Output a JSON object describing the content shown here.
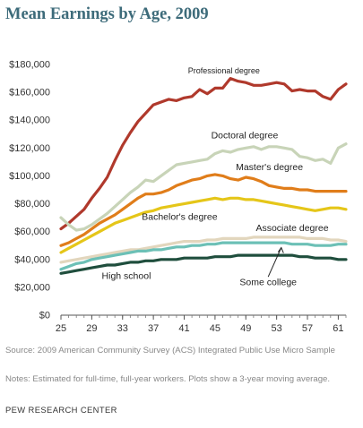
{
  "title": "Mean Earnings by Age, 2009",
  "source": "Source: 2009 American Community Survey (ACS) Integrated Public Use Micro Sample",
  "notes": "Notes: Estimated for full-time, full-year workers. Plots show a 3-year moving average.",
  "brand": "PEW RESEARCH CENTER",
  "chart_data": {
    "type": "line",
    "x": [
      25,
      26,
      27,
      28,
      29,
      30,
      31,
      32,
      33,
      34,
      35,
      36,
      37,
      38,
      39,
      40,
      41,
      42,
      43,
      44,
      45,
      46,
      47,
      48,
      49,
      50,
      51,
      52,
      53,
      54,
      55,
      56,
      57,
      58,
      59,
      60,
      61,
      62
    ],
    "xticks": [
      25,
      29,
      33,
      37,
      41,
      45,
      49,
      53,
      57,
      61
    ],
    "xtick_labels": [
      "25",
      "29",
      "33",
      "37",
      "41",
      "45",
      "49",
      "53",
      "57",
      "61"
    ],
    "xlim": [
      25,
      62
    ],
    "ylim": [
      0,
      180000
    ],
    "yticks": [
      0,
      20000,
      40000,
      60000,
      80000,
      100000,
      120000,
      140000,
      160000,
      180000
    ],
    "ytick_labels": [
      "$0",
      "$20,000",
      "$40,000",
      "$60,000",
      "$80,000",
      "$100,000",
      "$120,000",
      "$140,000",
      "$160,000",
      "$180,000"
    ],
    "grid": false,
    "series": [
      {
        "name": "Professional degree",
        "color": "#b0392c",
        "values": [
          62000,
          66000,
          71000,
          76000,
          84000,
          91000,
          99000,
          111000,
          122000,
          131000,
          139000,
          145000,
          151000,
          153000,
          155000,
          154000,
          156000,
          157000,
          162000,
          159000,
          163000,
          163000,
          170000,
          168000,
          167000,
          165000,
          165000,
          166000,
          167000,
          166000,
          161000,
          162000,
          161000,
          161000,
          157000,
          155000,
          162000,
          166000
        ]
      },
      {
        "name": "Doctoral degree",
        "color": "#c8d4b8",
        "values": [
          70000,
          65000,
          61000,
          62000,
          65000,
          69000,
          73000,
          78000,
          83000,
          88000,
          92000,
          97000,
          96000,
          100000,
          104000,
          108000,
          109000,
          110000,
          111000,
          112000,
          116000,
          118000,
          117000,
          119000,
          120000,
          121000,
          119000,
          121000,
          121000,
          120000,
          119000,
          114000,
          113000,
          111000,
          112000,
          109000,
          120000,
          123000
        ]
      },
      {
        "name": "Master's degree",
        "color": "#e07d1a",
        "values": [
          50000,
          52000,
          55000,
          58000,
          62000,
          66000,
          69000,
          72000,
          76000,
          80000,
          84000,
          87000,
          87000,
          88000,
          90000,
          93000,
          95000,
          97000,
          98000,
          100000,
          101000,
          100000,
          98000,
          97000,
          99000,
          98000,
          96000,
          93000,
          92000,
          91000,
          91000,
          90000,
          90000,
          89000,
          89000,
          89000,
          89000,
          89000
        ]
      },
      {
        "name": "Bachelor's degree",
        "color": "#e5c619",
        "values": [
          45000,
          48000,
          51000,
          54000,
          57000,
          60000,
          63000,
          66000,
          68000,
          70000,
          72000,
          74000,
          75000,
          77000,
          78000,
          79000,
          80000,
          81000,
          82000,
          83000,
          84000,
          83000,
          84000,
          84000,
          83000,
          83000,
          82000,
          81000,
          80000,
          79000,
          78000,
          77000,
          76000,
          75000,
          76000,
          77000,
          77000,
          76000
        ]
      },
      {
        "name": "Associate degree",
        "color": "#e2d6bd",
        "values": [
          38000,
          39000,
          40000,
          41000,
          42000,
          43000,
          44000,
          45000,
          46000,
          47000,
          47000,
          48000,
          49000,
          50000,
          51000,
          52000,
          53000,
          53000,
          53000,
          54000,
          54000,
          55000,
          55000,
          55000,
          55000,
          56000,
          56000,
          56000,
          56000,
          56000,
          56000,
          56000,
          55000,
          55000,
          55000,
          54000,
          54000,
          53000
        ]
      },
      {
        "name": "Some college",
        "color": "#6cc0b6",
        "values": [
          33000,
          35000,
          37000,
          38000,
          40000,
          41000,
          42000,
          43000,
          44000,
          45000,
          46000,
          46000,
          47000,
          47000,
          48000,
          49000,
          49000,
          50000,
          50000,
          51000,
          51000,
          52000,
          52000,
          52000,
          52000,
          52000,
          52000,
          52000,
          52000,
          52000,
          51000,
          51000,
          51000,
          50000,
          50000,
          50000,
          51000,
          51000
        ]
      },
      {
        "name": "High school",
        "color": "#1f4e3d",
        "values": [
          30000,
          31000,
          32000,
          33000,
          34000,
          35000,
          36000,
          36000,
          37000,
          38000,
          38000,
          39000,
          39000,
          40000,
          40000,
          40000,
          41000,
          41000,
          41000,
          41000,
          42000,
          42000,
          42000,
          43000,
          43000,
          43000,
          43000,
          43000,
          43000,
          43000,
          43000,
          42000,
          42000,
          41000,
          41000,
          41000,
          40000,
          40000
        ]
      }
    ],
    "annotations": [
      {
        "text": "Professional degree",
        "x": 41.5,
        "y": 173500,
        "size": 9
      },
      {
        "text": "Doctoral degree",
        "x": 44.5,
        "y": 127000,
        "size": 10.5
      },
      {
        "text": "Master's degree",
        "x": 47.7,
        "y": 104000,
        "size": 10.5
      },
      {
        "text": "Bachelor's degree",
        "x": 35.5,
        "y": 68500,
        "size": 10.5
      },
      {
        "text": "Associate degree",
        "x": 50.3,
        "y": 60500,
        "size": 10.5
      },
      {
        "text": "High school",
        "x": 30.3,
        "y": 26000,
        "size": 10.5
      },
      {
        "text": "Some college",
        "x": 48.2,
        "y": 21500,
        "size": 10.5
      }
    ]
  }
}
